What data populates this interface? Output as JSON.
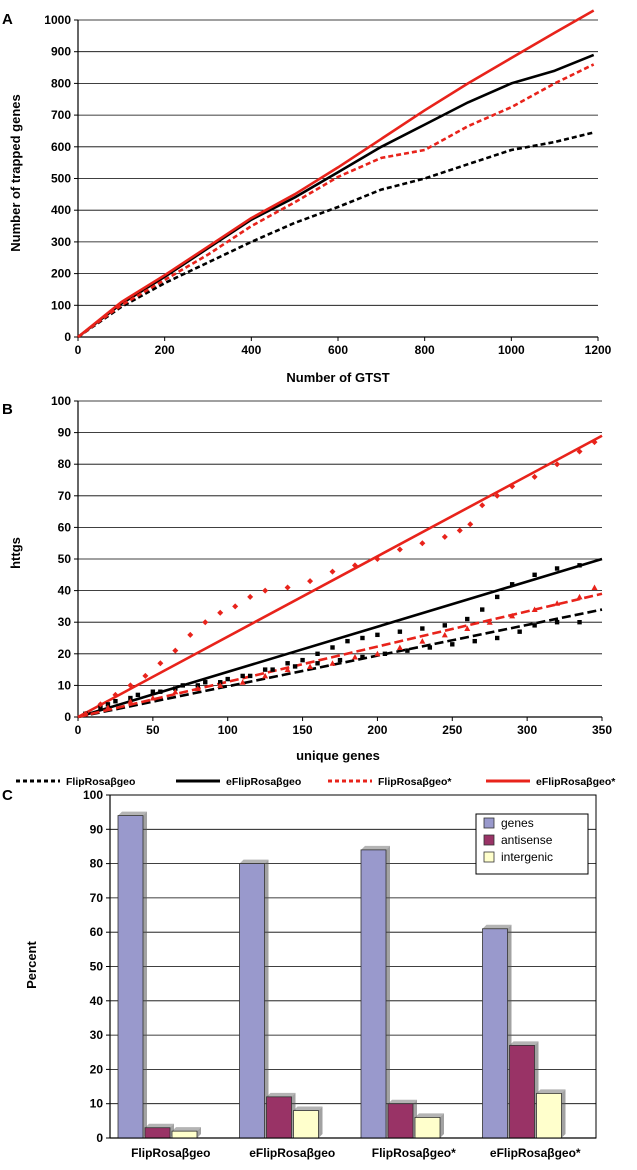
{
  "panels": {
    "A": "A",
    "B": "B",
    "C": "C"
  },
  "legend": {
    "items": [
      {
        "label": "FlipRosaβgeo",
        "color": "#000000",
        "dashed": true
      },
      {
        "label": "eFlipRosaβgeo",
        "color": "#000000",
        "dashed": false
      },
      {
        "label": "FlipRosaβgeo*",
        "color": "#e8231b",
        "dashed": true
      },
      {
        "label": "eFlipRosaβgeo*",
        "color": "#e8231b",
        "dashed": false
      }
    ]
  },
  "chart_data": [
    {
      "type": "line",
      "panel": "A",
      "xlabel": "Number of GTST",
      "ylabel": "Number of trapped genes",
      "xlim": [
        0,
        1200
      ],
      "ylim": [
        0,
        1000
      ],
      "xticks": [
        0,
        200,
        400,
        600,
        800,
        1000,
        1200
      ],
      "yticks": [
        0,
        100,
        200,
        300,
        400,
        500,
        600,
        700,
        800,
        900,
        1000
      ],
      "grid": "horizontal",
      "series": [
        {
          "name": "FlipRosaβgeo",
          "color": "#000000",
          "dashed": true,
          "x": [
            0,
            100,
            200,
            300,
            400,
            500,
            600,
            700,
            800,
            900,
            1000,
            1100,
            1190
          ],
          "y": [
            0,
            95,
            170,
            235,
            300,
            360,
            410,
            465,
            500,
            545,
            590,
            615,
            645
          ]
        },
        {
          "name": "eFlipRosaβgeo",
          "color": "#000000",
          "dashed": false,
          "x": [
            0,
            100,
            200,
            300,
            400,
            500,
            600,
            700,
            800,
            900,
            1000,
            1100,
            1190
          ],
          "y": [
            0,
            105,
            190,
            280,
            370,
            440,
            520,
            600,
            670,
            740,
            800,
            840,
            890
          ]
        },
        {
          "name": "FlipRosaβgeo*",
          "color": "#e8231b",
          "dashed": true,
          "x": [
            0,
            100,
            200,
            300,
            400,
            500,
            600,
            700,
            800,
            900,
            1000,
            1100,
            1190
          ],
          "y": [
            0,
            100,
            180,
            260,
            350,
            425,
            505,
            565,
            590,
            665,
            725,
            800,
            860
          ]
        },
        {
          "name": "eFlipRosaβgeo*",
          "color": "#e8231b",
          "dashed": false,
          "x": [
            0,
            100,
            200,
            300,
            400,
            500,
            600,
            700,
            800,
            900,
            1000,
            1100,
            1190
          ],
          "y": [
            0,
            110,
            195,
            285,
            375,
            450,
            535,
            625,
            715,
            800,
            880,
            960,
            1030
          ]
        }
      ]
    },
    {
      "type": "scatter",
      "panel": "B",
      "xlabel": "unique genes",
      "ylabel": "httgs",
      "xlim": [
        0,
        350
      ],
      "ylim": [
        0,
        100
      ],
      "xticks": [
        0,
        50,
        100,
        150,
        200,
        250,
        300,
        350
      ],
      "yticks": [
        0,
        10,
        20,
        30,
        40,
        50,
        60,
        70,
        80,
        90,
        100
      ],
      "grid": "horizontal",
      "series": [
        {
          "name": "FlipRosaβgeo",
          "color": "#000000",
          "marker": "square",
          "x": [
            5,
            15,
            25,
            40,
            55,
            70,
            85,
            100,
            115,
            130,
            145,
            160,
            175,
            190,
            205,
            220,
            235,
            250,
            265,
            280,
            295,
            305,
            320,
            335
          ],
          "y": [
            1,
            3,
            5,
            7,
            8,
            10,
            11,
            12,
            13,
            15,
            16,
            17,
            18,
            19,
            20,
            21,
            22,
            23,
            24,
            25,
            27,
            29,
            30,
            30
          ]
        },
        {
          "name": "eFlipRosaβgeo",
          "color": "#000000",
          "marker": "square",
          "x": [
            5,
            20,
            35,
            50,
            65,
            80,
            95,
            110,
            125,
            140,
            150,
            160,
            170,
            180,
            190,
            200,
            215,
            230,
            245,
            260,
            270,
            280,
            290,
            305,
            320,
            335
          ],
          "y": [
            1,
            4,
            6,
            8,
            9,
            10,
            11,
            13,
            15,
            17,
            18,
            20,
            22,
            24,
            25,
            26,
            27,
            28,
            29,
            31,
            34,
            38,
            42,
            45,
            47,
            48
          ]
        },
        {
          "name": "FlipRosaβgeo*",
          "color": "#e8231b",
          "marker": "triangle",
          "x": [
            5,
            20,
            35,
            50,
            65,
            80,
            95,
            110,
            125,
            140,
            155,
            170,
            185,
            200,
            215,
            230,
            245,
            260,
            275,
            290,
            305,
            320,
            335,
            345
          ],
          "y": [
            1,
            3,
            5,
            6,
            8,
            9,
            10,
            11,
            13,
            15,
            16,
            17,
            19,
            20,
            22,
            24,
            26,
            28,
            30,
            32,
            34,
            36,
            38,
            41
          ]
        },
        {
          "name": "eFlipRosaβgeo*",
          "color": "#e8231b",
          "marker": "diamond",
          "x": [
            5,
            15,
            25,
            35,
            45,
            55,
            65,
            75,
            85,
            95,
            105,
            115,
            125,
            140,
            155,
            170,
            185,
            200,
            215,
            230,
            245,
            255,
            262,
            270,
            280,
            290,
            305,
            320,
            335,
            345
          ],
          "y": [
            1,
            4,
            7,
            10,
            13,
            17,
            21,
            26,
            30,
            33,
            35,
            38,
            40,
            41,
            43,
            46,
            48,
            50,
            53,
            55,
            57,
            59,
            61,
            67,
            70,
            73,
            76,
            80,
            84,
            87
          ]
        }
      ],
      "trendlines": [
        {
          "name": "FlipRosaβgeo",
          "color": "#000000",
          "dashed": true,
          "x": [
            0,
            350
          ],
          "y": [
            0,
            34
          ]
        },
        {
          "name": "eFlipRosaβgeo",
          "color": "#000000",
          "dashed": false,
          "x": [
            0,
            350
          ],
          "y": [
            0,
            50
          ]
        },
        {
          "name": "FlipRosaβgeo*",
          "color": "#e8231b",
          "dashed": true,
          "x": [
            0,
            350
          ],
          "y": [
            0,
            39
          ]
        },
        {
          "name": "eFlipRosaβgeo*",
          "color": "#e8231b",
          "dashed": false,
          "x": [
            0,
            350
          ],
          "y": [
            0,
            89
          ]
        }
      ]
    },
    {
      "type": "bar",
      "panel": "C",
      "ylabel": "Percent",
      "ylim": [
        0,
        100
      ],
      "yticks": [
        0,
        10,
        20,
        30,
        40,
        50,
        60,
        70,
        80,
        90,
        100
      ],
      "grid": "horizontal",
      "legend_position": "top-right",
      "categories": [
        "FlipRosaβgeo",
        "eFlipRosaβgeo",
        "FlipRosaβgeo*",
        "eFlipRosaβgeo*"
      ],
      "series": [
        {
          "name": "genes",
          "color": "#9999cc",
          "values": [
            94,
            80,
            84,
            61
          ]
        },
        {
          "name": "antisense",
          "color": "#993366",
          "values": [
            3,
            12,
            10,
            27
          ]
        },
        {
          "name": "intergenic",
          "color": "#ffffcc",
          "values": [
            2,
            8,
            6,
            13
          ]
        }
      ]
    }
  ]
}
